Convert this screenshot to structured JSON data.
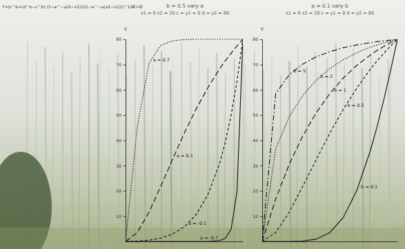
{
  "chart_data": [
    {
      "type": "line",
      "title": "b = 0.5 vary a",
      "subtitle": "x1 = 0 x2 = 20 c = y1 = 0 d = y2 = 80",
      "annotations": [
        "Y=[c^b+(d^b−c^b)·(1−e^−a(X−x1))/(1−e^−a(x2−x1))]^1/b",
        "X>0"
      ],
      "y_label": "Y",
      "x": [
        0,
        2,
        4,
        6,
        8,
        10,
        12,
        14,
        16,
        17,
        18,
        19,
        20
      ],
      "xlim": [
        0,
        20
      ],
      "ylim": [
        0,
        80
      ],
      "yticks": [
        10,
        20,
        30,
        40,
        50,
        60,
        70,
        80
      ],
      "tick_labels": "y",
      "series": [
        {
          "name": "a = 0.7",
          "color": "#1a1a1a",
          "line_style": "dotted",
          "values": [
            0,
            45.4,
            70.5,
            77.6,
            79.4,
            79.9,
            80,
            80,
            80,
            80,
            80,
            80,
            80
          ]
        },
        {
          "name": "a = 0.1",
          "color": "#1a1a1a",
          "line_style": "longdash",
          "values": [
            0,
            3.5,
            11.6,
            21.8,
            32.4,
            42.8,
            52.3,
            60.7,
            68.2,
            71.5,
            74.5,
            77.4,
            80
          ]
        },
        {
          "name": "a = -0.1",
          "color": "#1a1a1a",
          "line_style": "dashed",
          "values": [
            0,
            0.1,
            0.5,
            1.3,
            2.9,
            5.8,
            10.5,
            18.3,
            30.6,
            39.2,
            50.0,
            63.4,
            80
          ]
        },
        {
          "name": "a = -0.7",
          "color": "#1a1a1a",
          "line_style": "solid",
          "values": [
            0,
            0,
            0,
            0,
            0,
            0,
            0,
            0,
            0.3,
            1.2,
            4.9,
            19.7,
            80
          ]
        }
      ]
    },
    {
      "type": "line",
      "title": "a = 0.1 vary b",
      "subtitle": "x1 = 0 x2 = 20 c = y1 = 0 d = y2 = 80",
      "y_label": "Y",
      "x": [
        0,
        2,
        4,
        6,
        8,
        10,
        12,
        14,
        16,
        17,
        18,
        19,
        20
      ],
      "xlim": [
        0,
        20
      ],
      "ylim": [
        0,
        80
      ],
      "yticks": [
        10,
        20,
        30,
        40,
        50,
        60,
        70,
        80
      ],
      "tick_labels": "y",
      "series": [
        {
          "name": "b = 5",
          "color": "#1a1a1a",
          "line_style": "dashdot",
          "values": [
            0,
            58.5,
            66.0,
            70.2,
            73.1,
            75.1,
            76.7,
            77.8,
            78.7,
            79.1,
            79.4,
            79.7,
            80
          ]
        },
        {
          "name": "b = 2",
          "color": "#1a1a1a",
          "line_style": "dotted",
          "values": [
            0,
            36.6,
            49.4,
            57.8,
            63.8,
            68.4,
            71.9,
            74.7,
            76.9,
            77.8,
            78.6,
            79.3,
            80
          ]
        },
        {
          "name": "b = 1",
          "color": "#1a1a1a",
          "line_style": "longdash",
          "values": [
            0,
            16.8,
            30.5,
            41.7,
            51.0,
            58.5,
            64.7,
            69.7,
            73.8,
            75.6,
            77.2,
            78.7,
            80
          ]
        },
        {
          "name": "b = 0.5",
          "color": "#1a1a1a",
          "line_style": "dashed",
          "values": [
            0,
            3.5,
            11.6,
            21.8,
            32.4,
            42.8,
            52.3,
            60.7,
            68.2,
            71.5,
            74.5,
            77.4,
            80
          ]
        },
        {
          "name": "b = 0.1",
          "color": "#1a1a1a",
          "line_style": "solid",
          "values": [
            0,
            0,
            0,
            0.1,
            0.9,
            3.5,
            9.5,
            20.2,
            35.9,
            45.5,
            56.2,
            67.8,
            80
          ]
        }
      ]
    }
  ]
}
